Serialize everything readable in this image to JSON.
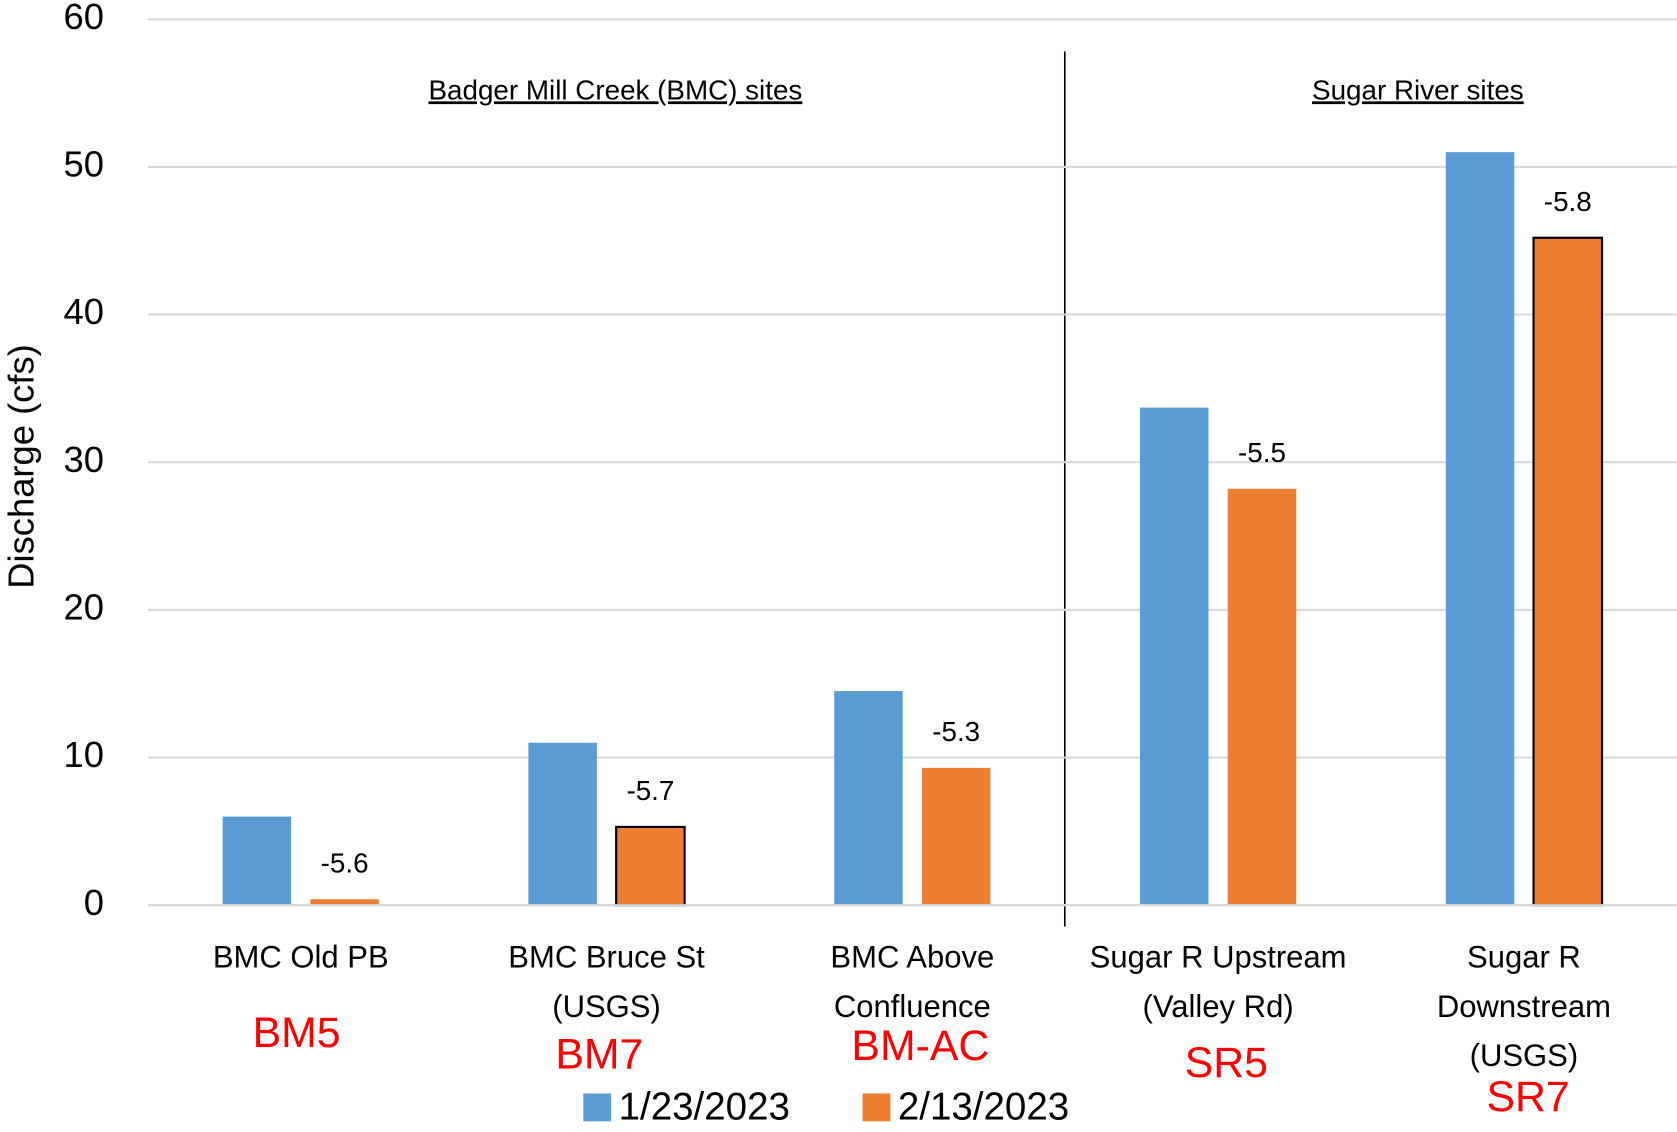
{
  "chart_data": {
    "type": "bar",
    "y_axis_label": "Discharge (cfs)",
    "categories": [
      "BMC Old PB",
      "BMC Bruce St\n(USGS)",
      "BMC Above\nConfluence",
      "Sugar R Upstream\n(Valley Rd)",
      "Sugar R\nDownstream\n(USGS)"
    ],
    "site_codes": [
      "BM5",
      "BM7",
      "BM-AC",
      "SR5",
      "SR7"
    ],
    "group_labels": [
      "Badger Mill Creek (BMC) sites",
      "Sugar River sites"
    ],
    "series": [
      {
        "name": "1/23/2023",
        "color": "#5b9bd5",
        "values": [
          6.0,
          11.0,
          14.5,
          33.7,
          51.0
        ]
      },
      {
        "name": "2/13/2023",
        "color": "#ed7d31",
        "values": [
          0.4,
          5.3,
          9.3,
          28.2,
          45.2
        ],
        "outlined": [
          false,
          true,
          false,
          false,
          true
        ],
        "annotations": [
          "-5.6",
          "-5.7",
          "-5.3",
          "-5.5",
          "-5.8"
        ]
      }
    ],
    "ylim": [
      0,
      60
    ],
    "yticks": [
      0,
      10,
      20,
      30,
      40,
      50,
      60
    ],
    "grid": true
  }
}
